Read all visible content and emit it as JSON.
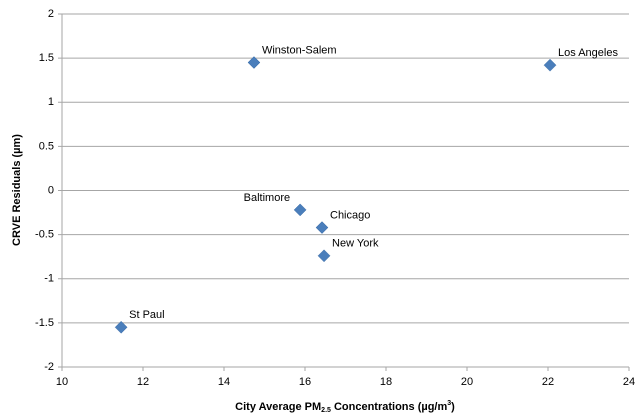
{
  "chart_data": {
    "type": "scatter",
    "x_label": [
      "City Average PM",
      "2.5",
      " Concentrations (µg/m",
      "3",
      ")"
    ],
    "y_label": "CRVE Residuals (µm)",
    "x": [
      14.74,
      22.05,
      15.88,
      16.42,
      16.47,
      11.46
    ],
    "values": [
      1.45,
      1.42,
      -0.22,
      -0.42,
      -0.74,
      -1.55
    ],
    "point_labels": [
      "Winston-Salem",
      "Los Angeles",
      "Baltimore",
      "Chicago",
      "New York",
      "St Paul"
    ],
    "color": "#4a7ebb",
    "xlim": [
      10,
      24
    ],
    "xticks": [
      10,
      12,
      14,
      16,
      18,
      20,
      22,
      24
    ],
    "ylim": [
      -2,
      2
    ],
    "yticks": [
      -2,
      -1.5,
      -1,
      -0.5,
      0,
      0.5,
      1,
      1.5,
      2
    ],
    "grid": true
  }
}
